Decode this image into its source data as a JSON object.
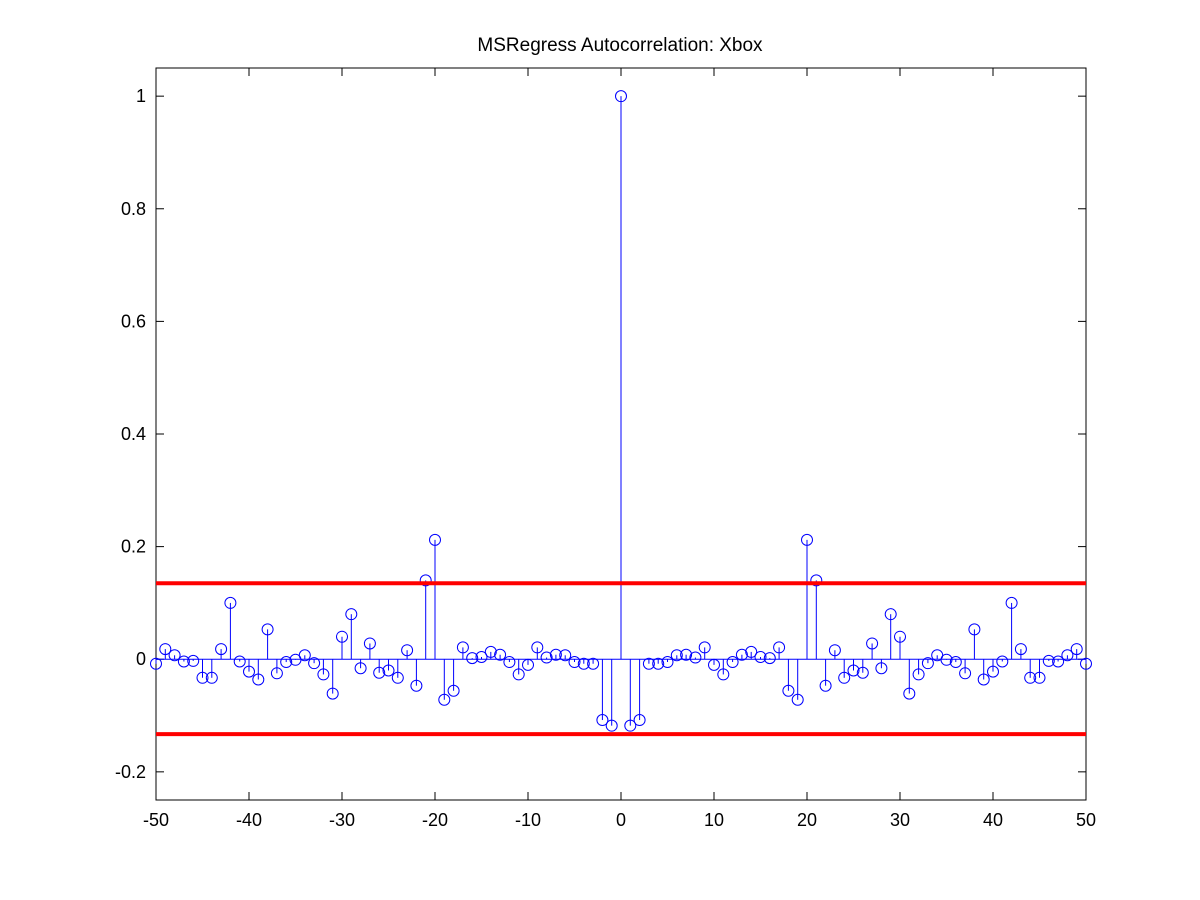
{
  "chart_data": {
    "type": "stem",
    "title": "MSRegress Autocorrelation: Xbox",
    "xlabel": "",
    "ylabel": "",
    "xlim": [
      -50,
      50
    ],
    "ylim": [
      -0.25,
      1.05
    ],
    "x_ticks": [
      -50,
      -40,
      -30,
      -20,
      -10,
      0,
      10,
      20,
      30,
      40,
      50
    ],
    "y_ticks": [
      -0.2,
      0,
      0.2,
      0.4,
      0.6,
      0.8,
      1
    ],
    "x_tick_labels": [
      "-50",
      "-40",
      "-30",
      "-20",
      "-10",
      "0",
      "10",
      "20",
      "30",
      "40",
      "50"
    ],
    "y_tick_labels": [
      "-0.2",
      "0",
      "0.2",
      "0.4",
      "0.6",
      "0.8",
      "1"
    ],
    "grid": false,
    "colors": {
      "stem": "#0000ff",
      "bounds": "#ff0000",
      "axes": "#000000"
    },
    "confidence_bounds": [
      0.135,
      -0.133
    ],
    "lags": [
      -50,
      -49,
      -48,
      -47,
      -46,
      -45,
      -44,
      -43,
      -42,
      -41,
      -40,
      -39,
      -38,
      -37,
      -36,
      -35,
      -34,
      -33,
      -32,
      -31,
      -30,
      -29,
      -28,
      -27,
      -26,
      -25,
      -24,
      -23,
      -22,
      -21,
      -20,
      -19,
      -18,
      -17,
      -16,
      -15,
      -14,
      -13,
      -12,
      -11,
      -10,
      -9,
      -8,
      -7,
      -6,
      -5,
      -4,
      -3,
      -2,
      -1,
      0,
      1,
      2,
      3,
      4,
      5,
      6,
      7,
      8,
      9,
      10,
      11,
      12,
      13,
      14,
      15,
      16,
      17,
      18,
      19,
      20,
      21,
      22,
      23,
      24,
      25,
      26,
      27,
      28,
      29,
      30,
      31,
      32,
      33,
      34,
      35,
      36,
      37,
      38,
      39,
      40,
      41,
      42,
      43,
      44,
      45,
      46,
      47,
      48,
      49,
      50
    ],
    "values": [
      -0.008,
      0.018,
      0.007,
      -0.004,
      -0.003,
      -0.033,
      -0.033,
      0.018,
      0.1,
      -0.004,
      -0.022,
      -0.036,
      0.053,
      -0.025,
      -0.005,
      -0.001,
      0.007,
      -0.007,
      -0.027,
      -0.061,
      0.04,
      0.08,
      -0.016,
      0.028,
      -0.024,
      -0.02,
      -0.033,
      0.016,
      -0.047,
      0.14,
      0.212,
      -0.072,
      -0.056,
      0.021,
      0.002,
      0.004,
      0.013,
      0.008,
      -0.005,
      -0.027,
      -0.01,
      0.021,
      0.003,
      0.008,
      0.007,
      -0.005,
      -0.008,
      -0.008,
      -0.108,
      -0.118,
      1.0,
      -0.118,
      -0.108,
      -0.008,
      -0.008,
      -0.005,
      0.007,
      0.008,
      0.003,
      0.021,
      -0.01,
      -0.027,
      -0.005,
      0.008,
      0.013,
      0.004,
      0.002,
      0.021,
      -0.056,
      -0.072,
      0.212,
      0.14,
      -0.047,
      0.016,
      -0.033,
      -0.02,
      -0.024,
      0.028,
      -0.016,
      0.08,
      0.04,
      -0.061,
      -0.027,
      -0.007,
      0.007,
      -0.001,
      -0.005,
      -0.025,
      0.053,
      -0.036,
      -0.022,
      -0.004,
      0.1,
      0.018,
      -0.033,
      -0.033,
      -0.003,
      -0.004,
      0.007,
      0.018,
      -0.008
    ]
  }
}
